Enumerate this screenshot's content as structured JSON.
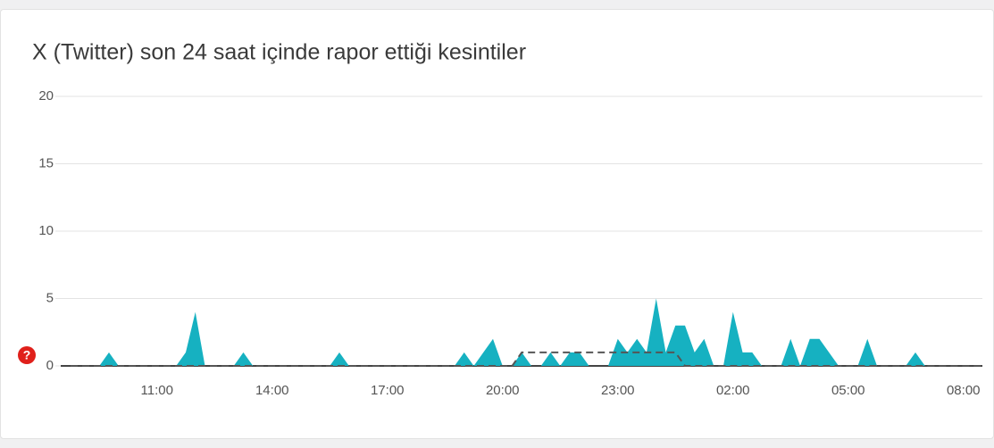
{
  "chart_data": {
    "type": "area",
    "title": "X (Twitter) son 24 saat içinde rapor ettiği kesintiler",
    "help_icon": "?",
    "categories": [
      null,
      null,
      null,
      null,
      null,
      null,
      null,
      null,
      null,
      "11:00",
      null,
      null,
      null,
      null,
      null,
      null,
      null,
      null,
      null,
      null,
      null,
      "14:00",
      null,
      null,
      null,
      null,
      null,
      null,
      null,
      null,
      null,
      null,
      null,
      "17:00",
      null,
      null,
      null,
      null,
      null,
      null,
      null,
      null,
      null,
      null,
      null,
      "20:00",
      null,
      null,
      null,
      null,
      null,
      null,
      null,
      null,
      null,
      null,
      null,
      "23:00",
      null,
      null,
      null,
      null,
      null,
      null,
      null,
      null,
      null,
      null,
      null,
      "02:00",
      null,
      null,
      null,
      null,
      null,
      null,
      null,
      null,
      null,
      null,
      null,
      "05:00",
      null,
      null,
      null,
      null,
      null,
      null,
      null,
      null,
      null,
      null,
      null,
      "08:00",
      null,
      null
    ],
    "series": [
      {
        "color": "#16b1c1",
        "style": "area",
        "values": [
          0,
          0,
          0,
          0,
          1,
          0,
          0,
          0,
          0,
          0,
          0,
          0,
          1,
          4,
          0,
          0,
          0,
          0,
          1,
          0,
          0,
          0,
          0,
          0,
          0,
          0,
          0,
          0,
          1,
          0,
          0,
          0,
          0,
          0,
          0,
          0,
          0,
          0,
          0,
          0,
          0,
          1,
          0,
          1,
          2,
          0,
          0,
          1,
          0,
          0,
          1,
          0,
          1,
          1,
          0,
          0,
          0,
          2,
          1,
          2,
          1,
          5,
          1,
          3,
          3,
          1,
          2,
          0,
          0,
          4,
          1,
          1,
          0,
          0,
          0,
          2,
          0,
          2,
          2,
          1,
          0,
          0,
          0,
          2,
          0,
          0,
          0,
          0,
          1,
          0,
          0,
          0,
          0,
          0,
          0,
          0
        ]
      },
      {
        "color": "#555555",
        "style": "dashed",
        "values": [
          0,
          0,
          0,
          0,
          0,
          0,
          0,
          0,
          0,
          0,
          0,
          0,
          0,
          0,
          0,
          0,
          0,
          0,
          0,
          0,
          0,
          0,
          0,
          0,
          0,
          0,
          0,
          0,
          0,
          0,
          0,
          0,
          0,
          0,
          0,
          0,
          0,
          0,
          0,
          0,
          0,
          0,
          0,
          0,
          0,
          0,
          0,
          1,
          1,
          1,
          1,
          1,
          1,
          1,
          1,
          1,
          1,
          1,
          1,
          1,
          1,
          1,
          1,
          1,
          0,
          0,
          0,
          0,
          0,
          0,
          0,
          0,
          0,
          0,
          0,
          0,
          0,
          0,
          0,
          0,
          0,
          0,
          0,
          0,
          0,
          0,
          0,
          0,
          0,
          0,
          0,
          0,
          0,
          0,
          0,
          0
        ]
      }
    ],
    "ylim": [
      0,
      20
    ],
    "yticks": [
      0,
      5,
      10,
      15,
      20
    ],
    "grid": true
  }
}
